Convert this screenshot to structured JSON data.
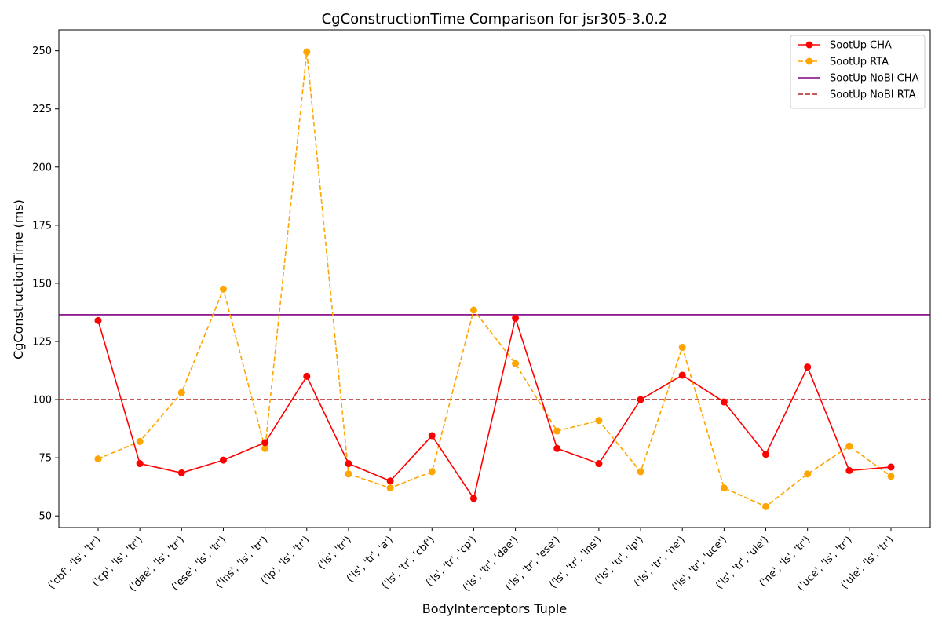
{
  "chart_data": {
    "type": "line",
    "title": "CgConstructionTime Comparison for jsr305-3.0.2",
    "xlabel": "BodyInterceptors Tuple",
    "ylabel": "CgConstructionTime (ms)",
    "ylim": [
      45,
      259
    ],
    "yticks": [
      50,
      75,
      100,
      125,
      150,
      175,
      200,
      225,
      250
    ],
    "grid": false,
    "legend_position": "top-right",
    "categories": [
      "('cbf', 'ls', 'tr')",
      "('cp', 'ls', 'tr')",
      "('dae', 'ls', 'tr')",
      "('ese', 'ls', 'tr')",
      "('lns', 'ls', 'tr')",
      "('lp', 'ls', 'tr')",
      "('ls', 'tr')",
      "('ls', 'tr', 'a')",
      "('ls', 'tr', 'cbf')",
      "('ls', 'tr', 'cp')",
      "('ls', 'tr', 'dae')",
      "('ls', 'tr', 'ese')",
      "('ls', 'tr', 'lns')",
      "('ls', 'tr', 'lp')",
      "('ls', 'tr', 'ne')",
      "('ls', 'tr', 'uce')",
      "('ls', 'tr', 'ule')",
      "('ne', 'ls', 'tr')",
      "('uce', 'ls', 'tr')",
      "('ule', 'ls', 'tr')"
    ],
    "series": [
      {
        "name": "SootUp CHA",
        "color": "#ff0000",
        "style": "solid-marker",
        "values": [
          134,
          72.5,
          68.5,
          74,
          81.5,
          110,
          72.5,
          65,
          84.5,
          57.5,
          135,
          79,
          72.5,
          100,
          110.5,
          99,
          76.5,
          114,
          69.5,
          71
        ]
      },
      {
        "name": "SootUp RTA",
        "color": "#ffa500",
        "style": "dashed-marker",
        "values": [
          74.5,
          82,
          103,
          147.5,
          79,
          249.5,
          68,
          62,
          69,
          138.5,
          115.5,
          86.5,
          91,
          69,
          122.5,
          62,
          54,
          68,
          80,
          67
        ]
      },
      {
        "name": "SootUp NoBI CHA",
        "color": "#800080",
        "style": "hline-solid",
        "value": 136.5
      },
      {
        "name": "SootUp NoBI RTA",
        "color": "#b22222",
        "style": "hline-dashed",
        "value": 100
      }
    ]
  }
}
